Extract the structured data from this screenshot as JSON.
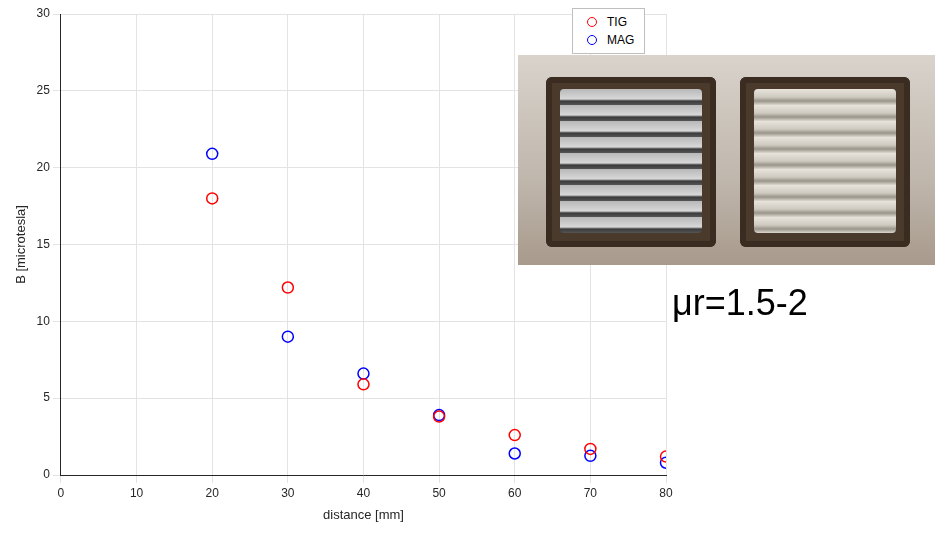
{
  "chart_data": {
    "type": "scatter",
    "x_label": "distance [mm]",
    "y_label": "B [microtesla]",
    "annotations": [
      "μr=1.5-2"
    ],
    "series": [
      {
        "name": "TIG",
        "color": "#ff0000",
        "marker": "open_circle",
        "x": [
          20,
          30,
          40,
          50,
          60,
          70,
          80
        ],
        "values": [
          18,
          12.2,
          5.9,
          3.8,
          2.6,
          1.7,
          1.2
        ]
      },
      {
        "name": "MAG",
        "color": "#0000ff",
        "marker": "open_circle",
        "x": [
          20,
          30,
          40,
          50,
          60,
          70,
          80
        ],
        "values": [
          20.9,
          9,
          6.6,
          3.9,
          1.4,
          1.25,
          0.8
        ]
      }
    ],
    "xlim": [
      0,
      80
    ],
    "xticks": [
      0,
      10,
      20,
      30,
      40,
      50,
      60,
      70,
      80
    ],
    "ylim": [
      0,
      30
    ],
    "yticks": [
      0,
      5,
      10,
      15,
      20,
      25,
      30
    ],
    "grid": true,
    "legend": "top-right"
  }
}
